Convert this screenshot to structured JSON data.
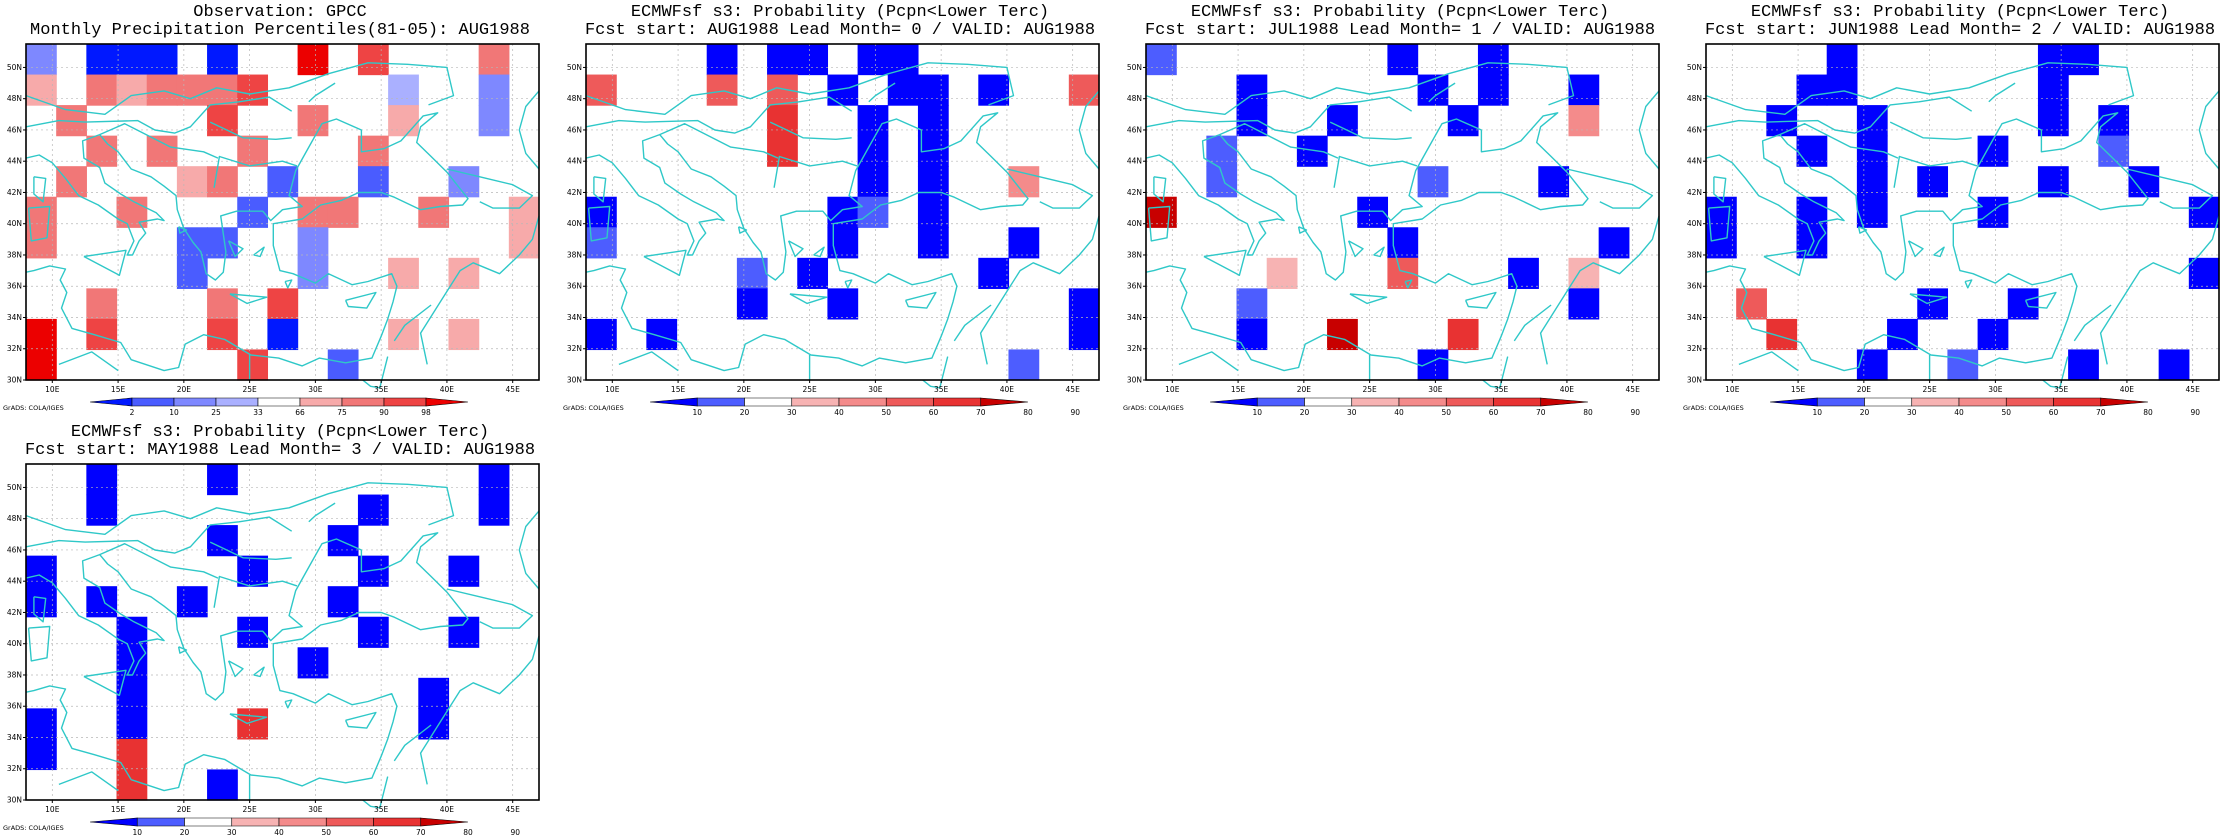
{
  "map": {
    "lon_ticks": [
      "10E",
      "15E",
      "20E",
      "25E",
      "30E",
      "35E",
      "40E",
      "45E"
    ],
    "lat_ticks": [
      "30N",
      "32N",
      "34N",
      "36N",
      "38N",
      "40N",
      "42N",
      "44N",
      "46N",
      "48N",
      "50N"
    ],
    "lon_range": [
      8,
      47
    ],
    "lat_range": [
      30,
      51.5
    ],
    "grid": true,
    "coastline_color": "#2fc8c8",
    "credit": "GrADS: COLA/IGES"
  },
  "palettes": {
    "percentile": [
      "#0018ff",
      "#4a5cff",
      "#7e88ff",
      "#aab0ff",
      "#ffffff",
      "#f7aaaa",
      "#f17777",
      "#ee4444",
      "#ec0000"
    ],
    "probability": [
      "#0000ff",
      "#4d5dff",
      "#ffffff",
      "#f7b3b3",
      "#f48b8b",
      "#ee5a5a",
      "#e83232",
      "#c80000"
    ]
  },
  "panels": [
    {
      "title1": "Observation: GPCC",
      "title2": "Monthly Precipitation Percentiles(81-05): AUG1988",
      "colorbar": {
        "labels": [
          "2",
          "10",
          "25",
          "33",
          "66",
          "75",
          "90",
          "98"
        ],
        "palette": "percentile"
      },
      "grid": [
        "2.000.0..8.7...6.",
        "5.656667....3..2.",
        ".6....7..6..5..2.",
        "..6.6..6...6.....",
        ".6...56.1..1..2..",
        "6..6...1.66..6..5",
        "6....11..2......5",
        ".....1...2..5.5..",
        "..6...6.7........",
        "8.7...7.0...5.5..",
        "8......7..1......"
      ]
    },
    {
      "title1": "ECMWFsf s3: Probability (Pcpn<Lower Terc)",
      "title2": "Fcst start: AUG1988  Lead Month= 0 / VALID: AUG1988",
      "colorbar": {
        "labels": [
          "10",
          "20",
          "30",
          "40",
          "50",
          "60",
          "70",
          "80",
          "90"
        ],
        "palette": "probability"
      },
      "grid": [
        "....0.00.00......",
        "5...5.5.0.00.0..5",
        "......6..0.0.....",
        "......6..0.0.....",
        ".........0.0..4..",
        "0.......01.0.....",
        "1.......0..0..0..",
        ".....1.0.....0...",
        ".....0..0..2....0",
        "0.0........2.2..0",
        "2.........2...1.."
      ]
    },
    {
      "title1": "ECMWFsf s3: Probability (Pcpn<Lower Terc)",
      "title2": "Fcst start: JUL1988  Lead Month= 1 / VALID: AUG1988",
      "colorbar": {
        "labels": [
          "10",
          "20",
          "30",
          "40",
          "50",
          "60",
          "70",
          "80",
          "90"
        ],
        "palette": "probability"
      },
      "grid": [
        "1.......0..0.....",
        "...0.....0.0..0..",
        "...0..0...0...4..",
        "..1..0...........",
        "..1......1...0...",
        "7......0.........",
        "........0......0.",
        "....3...5...0.3..",
        "...1..........0..",
        "...0..7...6......",
        ".........0...2..."
      ]
    },
    {
      "title1": "ECMWFsf s3: Probability (Pcpn<Lower Terc)",
      "title2": "Fcst start: JUN1988  Lead Month= 2 / VALID: AUG1988",
      "colorbar": {
        "labels": [
          "10",
          "20",
          "30",
          "40",
          "50",
          "60",
          "70",
          "80",
          "90"
        ],
        "palette": "probability"
      },
      "grid": [
        "....0......00....",
        "...00......0.....",
        "..0..0.....0.0...",
        "...0.0...0...1...",
        ".....0.0...0..0..",
        "0..0.0...0......0",
        "0..0.............",
        "................0",
        ".5.....0..0......",
        "..6...0..0.......",
        ".....0..1...0..0."
      ]
    },
    {
      "title1": "ECMWFsf s3: Probability (Pcpn<Lower Terc)",
      "title2": "Fcst start: MAY1988  Lead Month= 3 / VALID: AUG1988",
      "colorbar": {
        "labels": [
          "10",
          "20",
          "30",
          "40",
          "50",
          "60",
          "70",
          "80",
          "90"
        ],
        "palette": "probability"
      },
      "grid": [
        "..0...0........0.",
        "..0........0...0.",
        "......0...0......",
        "0......0...0..0..",
        "0.0..0....0......",
        "...0...0...0..0..",
        "...0.....0.......",
        "...0.........0...",
        "0..0...6.....0...",
        "0..6.............",
        "...6..0.........."
      ]
    }
  ]
}
